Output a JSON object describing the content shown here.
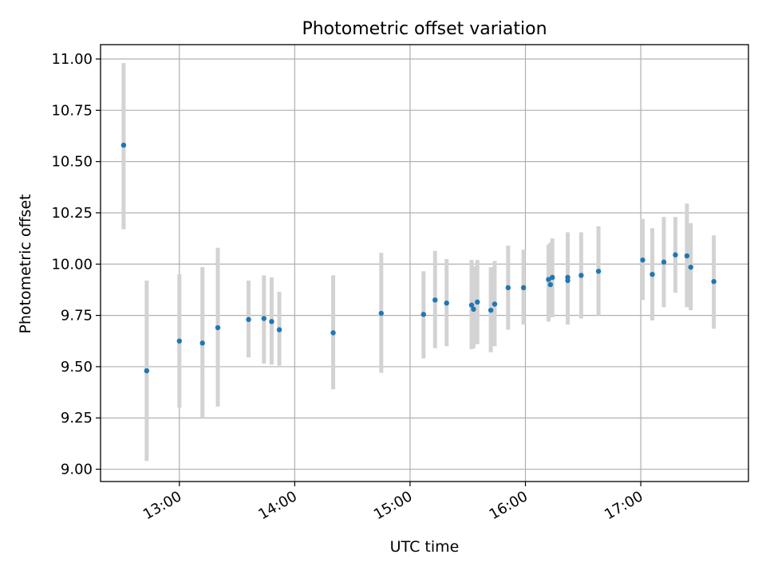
{
  "chart_data": {
    "type": "scatter",
    "title": "Photometric offset variation",
    "xlabel": "UTC time",
    "ylabel": "Photometric offset",
    "x_ticks": [
      "13:00",
      "14:00",
      "15:00",
      "16:00",
      "17:00"
    ],
    "y_ticks": [
      "9.00",
      "9.25",
      "9.50",
      "9.75",
      "10.00",
      "10.25",
      "10.50",
      "10.75",
      "11.00"
    ],
    "xlim": [
      "12:19",
      "17:56"
    ],
    "ylim": [
      8.94,
      11.07
    ],
    "grid": true,
    "colors": {
      "point": "#1f77b4",
      "errorbar": "#d3d3d3",
      "grid": "#b0b0b0"
    },
    "points": [
      {
        "x": "12:31",
        "y": 10.58,
        "yerr_low": 10.17,
        "yerr_high": 10.98
      },
      {
        "x": "12:43",
        "y": 9.48,
        "yerr_low": 9.04,
        "yerr_high": 9.92
      },
      {
        "x": "13:00",
        "y": 9.625,
        "yerr_low": 9.3,
        "yerr_high": 9.95
      },
      {
        "x": "13:12",
        "y": 9.615,
        "yerr_low": 9.25,
        "yerr_high": 9.985
      },
      {
        "x": "13:20",
        "y": 9.69,
        "yerr_low": 9.305,
        "yerr_high": 10.08
      },
      {
        "x": "13:36",
        "y": 9.73,
        "yerr_low": 9.545,
        "yerr_high": 9.92
      },
      {
        "x": "13:44",
        "y": 9.735,
        "yerr_low": 9.515,
        "yerr_high": 9.945
      },
      {
        "x": "13:48",
        "y": 9.72,
        "yerr_low": 9.51,
        "yerr_high": 9.935
      },
      {
        "x": "13:52",
        "y": 9.68,
        "yerr_low": 9.505,
        "yerr_high": 9.865
      },
      {
        "x": "14:20",
        "y": 9.665,
        "yerr_low": 9.39,
        "yerr_high": 9.945
      },
      {
        "x": "14:45",
        "y": 9.76,
        "yerr_low": 9.47,
        "yerr_high": 10.055
      },
      {
        "x": "15:07",
        "y": 9.755,
        "yerr_low": 9.54,
        "yerr_high": 9.965
      },
      {
        "x": "15:13",
        "y": 9.825,
        "yerr_low": 9.59,
        "yerr_high": 10.065
      },
      {
        "x": "15:19",
        "y": 9.81,
        "yerr_low": 9.6,
        "yerr_high": 10.025
      },
      {
        "x": "15:32",
        "y": 9.8,
        "yerr_low": 9.585,
        "yerr_high": 10.02
      },
      {
        "x": "15:33",
        "y": 9.78,
        "yerr_low": 9.59,
        "yerr_high": 9.99
      },
      {
        "x": "15:35",
        "y": 9.815,
        "yerr_low": 9.61,
        "yerr_high": 10.02
      },
      {
        "x": "15:42",
        "y": 9.775,
        "yerr_low": 9.57,
        "yerr_high": 9.985
      },
      {
        "x": "15:44",
        "y": 9.805,
        "yerr_low": 9.6,
        "yerr_high": 10.015
      },
      {
        "x": "15:51",
        "y": 9.885,
        "yerr_low": 9.68,
        "yerr_high": 10.09
      },
      {
        "x": "15:59",
        "y": 9.885,
        "yerr_low": 9.705,
        "yerr_high": 10.07
      },
      {
        "x": "16:12",
        "y": 9.925,
        "yerr_low": 9.72,
        "yerr_high": 10.095
      },
      {
        "x": "16:13",
        "y": 9.9,
        "yerr_low": 9.74,
        "yerr_high": 10.105
      },
      {
        "x": "16:14",
        "y": 9.935,
        "yerr_low": 9.74,
        "yerr_high": 10.125
      },
      {
        "x": "16:22",
        "y": 9.935,
        "yerr_low": 9.705,
        "yerr_high": 10.155
      },
      {
        "x": "16:22",
        "y": 9.92,
        "yerr_low": 9.73,
        "yerr_high": 10.13
      },
      {
        "x": "16:29",
        "y": 9.945,
        "yerr_low": 9.735,
        "yerr_high": 10.155
      },
      {
        "x": "16:38",
        "y": 9.965,
        "yerr_low": 9.75,
        "yerr_high": 10.185
      },
      {
        "x": "17:01",
        "y": 10.02,
        "yerr_low": 9.825,
        "yerr_high": 10.22
      },
      {
        "x": "17:06",
        "y": 9.95,
        "yerr_low": 9.725,
        "yerr_high": 10.175
      },
      {
        "x": "17:12",
        "y": 10.01,
        "yerr_low": 9.79,
        "yerr_high": 10.23
      },
      {
        "x": "17:18",
        "y": 10.045,
        "yerr_low": 9.86,
        "yerr_high": 10.23
      },
      {
        "x": "17:24",
        "y": 10.04,
        "yerr_low": 9.79,
        "yerr_high": 10.295
      },
      {
        "x": "17:26",
        "y": 9.985,
        "yerr_low": 9.775,
        "yerr_high": 10.2
      },
      {
        "x": "17:38",
        "y": 9.915,
        "yerr_low": 9.685,
        "yerr_high": 10.14
      }
    ]
  }
}
